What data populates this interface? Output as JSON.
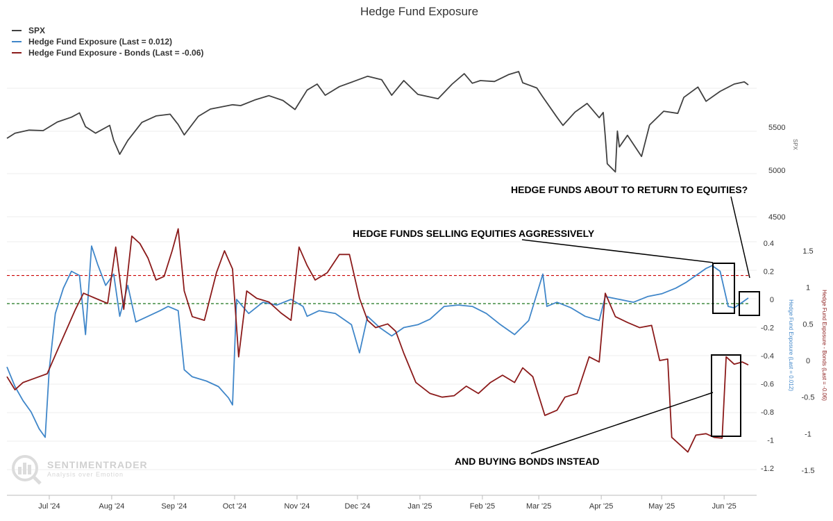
{
  "title": "Hedge Fund Exposure",
  "legend": [
    {
      "label": "SPX",
      "color": "#404040"
    },
    {
      "label": "Hedge Fund Exposure (Last = 0.012)",
      "color": "#3f86c9"
    },
    {
      "label": "Hedge Fund Exposure - Bonds (Last = -0.06)",
      "color": "#8b1a1a"
    }
  ],
  "watermark": {
    "name": "SENTIMENTRADER",
    "tagline": "Analysis over Emotion"
  },
  "annotations": {
    "return": "HEDGE FUNDS ABOUT TO RETURN TO EQUITIES?",
    "selling": "HEDGE FUNDS SELLING EQUITIES AGGRESSIVELY",
    "buying": "AND BUYING BONDS INSTEAD"
  },
  "chart_data": {
    "type": "line",
    "title": "Hedge Fund Exposure",
    "x_ticks": [
      "Jul '24",
      "Aug '24",
      "Sep '24",
      "Oct '24",
      "Nov '24",
      "Dec '24",
      "Jan '25",
      "Feb '25",
      "Mar '25",
      "Apr '25",
      "May '25",
      "Jun '25"
    ],
    "x_domain": [
      "2024-06-10",
      "2025-06-13"
    ],
    "grid": true,
    "legend_position": "top-left",
    "axes": {
      "spx": {
        "label": "SPX",
        "ticks": [
          5000,
          5500
        ],
        "extra_ticks": [
          4500
        ],
        "ylim": [
          4500,
          6600
        ]
      },
      "equity": {
        "label": "Hedge Fund Exposure (Last = 0.012)",
        "ticks": [
          -1.2,
          -1,
          -0.8,
          -0.6,
          -0.4,
          -0.2,
          0,
          0.2,
          0.4
        ],
        "ylim": [
          -1.2,
          0.4
        ],
        "color": "#3f86c9"
      },
      "bonds": {
        "label": "Hedge Fund Exposure - Bonds (Last = -0.06)",
        "ticks": [
          -1.5,
          -1,
          -0.5,
          0,
          0.5,
          1,
          1.5
        ],
        "ylim": [
          -1.5,
          1.5
        ],
        "color": "#8b1a1a"
      }
    },
    "reference_lines": [
      {
        "axis": "equity",
        "value": 0.17,
        "color": "#cc0000",
        "style": "dashed"
      },
      {
        "axis": "equity",
        "value": -0.03,
        "color": "#006400",
        "style": "dashed"
      }
    ],
    "series": [
      {
        "name": "SPX",
        "axis": "spx",
        "color": "#404040",
        "points": [
          [
            "2024-06-10",
            5370
          ],
          [
            "2024-06-14",
            5430
          ],
          [
            "2024-06-21",
            5465
          ],
          [
            "2024-06-28",
            5460
          ],
          [
            "2024-07-05",
            5560
          ],
          [
            "2024-07-12",
            5615
          ],
          [
            "2024-07-16",
            5665
          ],
          [
            "2024-07-19",
            5505
          ],
          [
            "2024-07-24",
            5430
          ],
          [
            "2024-07-31",
            5520
          ],
          [
            "2024-08-02",
            5345
          ],
          [
            "2024-08-05",
            5185
          ],
          [
            "2024-08-09",
            5345
          ],
          [
            "2024-08-16",
            5555
          ],
          [
            "2024-08-23",
            5630
          ],
          [
            "2024-08-30",
            5650
          ],
          [
            "2024-09-03",
            5530
          ],
          [
            "2024-09-06",
            5410
          ],
          [
            "2024-09-13",
            5625
          ],
          [
            "2024-09-19",
            5710
          ],
          [
            "2024-09-30",
            5760
          ],
          [
            "2024-10-04",
            5750
          ],
          [
            "2024-10-11",
            5815
          ],
          [
            "2024-10-18",
            5865
          ],
          [
            "2024-10-25",
            5810
          ],
          [
            "2024-10-31",
            5705
          ],
          [
            "2024-11-06",
            5930
          ],
          [
            "2024-11-11",
            6000
          ],
          [
            "2024-11-15",
            5870
          ],
          [
            "2024-11-22",
            5970
          ],
          [
            "2024-11-29",
            6030
          ],
          [
            "2024-12-06",
            6090
          ],
          [
            "2024-12-13",
            6050
          ],
          [
            "2024-12-18",
            5870
          ],
          [
            "2024-12-24",
            6040
          ],
          [
            "2024-12-31",
            5880
          ],
          [
            "2025-01-10",
            5830
          ],
          [
            "2025-01-17",
            6000
          ],
          [
            "2025-01-23",
            6120
          ],
          [
            "2025-01-27",
            6010
          ],
          [
            "2025-01-31",
            6040
          ],
          [
            "2025-02-07",
            6030
          ],
          [
            "2025-02-14",
            6110
          ],
          [
            "2025-02-19",
            6145
          ],
          [
            "2025-02-21",
            6015
          ],
          [
            "2025-02-28",
            5955
          ],
          [
            "2025-03-03",
            5850
          ],
          [
            "2025-03-10",
            5615
          ],
          [
            "2025-03-13",
            5520
          ],
          [
            "2025-03-19",
            5675
          ],
          [
            "2025-03-25",
            5775
          ],
          [
            "2025-03-31",
            5610
          ],
          [
            "2025-04-02",
            5670
          ],
          [
            "2025-04-03",
            5395
          ],
          [
            "2025-04-04",
            5075
          ],
          [
            "2025-04-08",
            4980
          ],
          [
            "2025-04-09",
            5455
          ],
          [
            "2025-04-10",
            5270
          ],
          [
            "2025-04-14",
            5405
          ],
          [
            "2025-04-21",
            5160
          ],
          [
            "2025-04-25",
            5525
          ],
          [
            "2025-05-02",
            5685
          ],
          [
            "2025-05-09",
            5660
          ],
          [
            "2025-05-12",
            5845
          ],
          [
            "2025-05-19",
            5965
          ],
          [
            "2025-05-23",
            5800
          ],
          [
            "2025-05-30",
            5915
          ],
          [
            "2025-06-06",
            6000
          ],
          [
            "2025-06-11",
            6025
          ],
          [
            "2025-06-13",
            5990
          ]
        ]
      },
      {
        "name": "Hedge Fund Exposure (Last = 0.012)",
        "axis": "equity",
        "color": "#3f86c9",
        "points": [
          [
            "2024-06-10",
            -0.48
          ],
          [
            "2024-06-14",
            -0.62
          ],
          [
            "2024-06-18",
            -0.72
          ],
          [
            "2024-06-22",
            -0.8
          ],
          [
            "2024-06-26",
            -0.92
          ],
          [
            "2024-06-29",
            -0.98
          ],
          [
            "2024-07-01",
            -0.5
          ],
          [
            "2024-07-04",
            -0.1
          ],
          [
            "2024-07-08",
            0.08
          ],
          [
            "2024-07-12",
            0.2
          ],
          [
            "2024-07-16",
            0.17
          ],
          [
            "2024-07-19",
            -0.25
          ],
          [
            "2024-07-22",
            0.38
          ],
          [
            "2024-07-25",
            0.25
          ],
          [
            "2024-07-29",
            0.1
          ],
          [
            "2024-08-02",
            0.18
          ],
          [
            "2024-08-05",
            -0.12
          ],
          [
            "2024-08-09",
            0.1
          ],
          [
            "2024-08-13",
            -0.16
          ],
          [
            "2024-08-19",
            -0.12
          ],
          [
            "2024-08-25",
            -0.08
          ],
          [
            "2024-08-29",
            -0.05
          ],
          [
            "2024-09-03",
            -0.08
          ],
          [
            "2024-09-06",
            -0.5
          ],
          [
            "2024-09-10",
            -0.55
          ],
          [
            "2024-09-17",
            -0.58
          ],
          [
            "2024-09-23",
            -0.62
          ],
          [
            "2024-09-28",
            -0.7
          ],
          [
            "2024-09-30",
            -0.75
          ],
          [
            "2024-10-02",
            0.0
          ],
          [
            "2024-10-08",
            -0.1
          ],
          [
            "2024-10-15",
            -0.02
          ],
          [
            "2024-10-22",
            -0.04
          ],
          [
            "2024-10-29",
            0.0
          ],
          [
            "2024-11-04",
            -0.05
          ],
          [
            "2024-11-06",
            -0.12
          ],
          [
            "2024-11-12",
            -0.08
          ],
          [
            "2024-11-20",
            -0.1
          ],
          [
            "2024-11-28",
            -0.18
          ],
          [
            "2024-12-02",
            -0.38
          ],
          [
            "2024-12-06",
            -0.12
          ],
          [
            "2024-12-12",
            -0.2
          ],
          [
            "2024-12-18",
            -0.26
          ],
          [
            "2024-12-24",
            -0.2
          ],
          [
            "2024-12-31",
            -0.18
          ],
          [
            "2025-01-06",
            -0.14
          ],
          [
            "2025-01-13",
            -0.05
          ],
          [
            "2025-01-20",
            -0.04
          ],
          [
            "2025-01-27",
            -0.05
          ],
          [
            "2025-02-03",
            -0.1
          ],
          [
            "2025-02-10",
            -0.18
          ],
          [
            "2025-02-17",
            -0.25
          ],
          [
            "2025-02-24",
            -0.15
          ],
          [
            "2025-03-03",
            0.18
          ],
          [
            "2025-03-05",
            -0.05
          ],
          [
            "2025-03-10",
            -0.02
          ],
          [
            "2025-03-17",
            -0.06
          ],
          [
            "2025-03-24",
            -0.12
          ],
          [
            "2025-03-31",
            -0.15
          ],
          [
            "2025-04-03",
            0.02
          ],
          [
            "2025-04-10",
            0.0
          ],
          [
            "2025-04-17",
            -0.02
          ],
          [
            "2025-04-24",
            0.02
          ],
          [
            "2025-05-01",
            0.04
          ],
          [
            "2025-05-08",
            0.08
          ],
          [
            "2025-05-13",
            0.12
          ],
          [
            "2025-05-19",
            0.18
          ],
          [
            "2025-05-23",
            0.22
          ],
          [
            "2025-05-26",
            0.24
          ],
          [
            "2025-05-30",
            0.2
          ],
          [
            "2025-06-03",
            -0.05
          ],
          [
            "2025-06-06",
            -0.06
          ],
          [
            "2025-06-10",
            -0.02
          ],
          [
            "2025-06-13",
            0.01
          ]
        ]
      },
      {
        "name": "Hedge Fund Exposure - Bonds (Last = -0.06)",
        "axis": "bonds",
        "color": "#8b1a1a",
        "points": [
          [
            "2024-06-10",
            -0.22
          ],
          [
            "2024-06-14",
            -0.4
          ],
          [
            "2024-06-18",
            -0.3
          ],
          [
            "2024-06-24",
            -0.24
          ],
          [
            "2024-06-30",
            -0.18
          ],
          [
            "2024-07-06",
            0.2
          ],
          [
            "2024-07-10",
            0.45
          ],
          [
            "2024-07-14",
            0.7
          ],
          [
            "2024-07-18",
            0.92
          ],
          [
            "2024-07-24",
            0.85
          ],
          [
            "2024-07-30",
            0.78
          ],
          [
            "2024-08-03",
            1.55
          ],
          [
            "2024-08-07",
            0.7
          ],
          [
            "2024-08-11",
            1.7
          ],
          [
            "2024-08-15",
            1.6
          ],
          [
            "2024-08-19",
            1.4
          ],
          [
            "2024-08-23",
            1.1
          ],
          [
            "2024-08-27",
            1.15
          ],
          [
            "2024-08-31",
            1.5
          ],
          [
            "2024-09-03",
            1.8
          ],
          [
            "2024-09-06",
            0.95
          ],
          [
            "2024-09-10",
            0.6
          ],
          [
            "2024-09-16",
            0.55
          ],
          [
            "2024-09-22",
            1.2
          ],
          [
            "2024-09-26",
            1.5
          ],
          [
            "2024-09-30",
            1.25
          ],
          [
            "2024-10-03",
            0.05
          ],
          [
            "2024-10-07",
            0.95
          ],
          [
            "2024-10-12",
            0.85
          ],
          [
            "2024-10-18",
            0.8
          ],
          [
            "2024-10-24",
            0.65
          ],
          [
            "2024-10-29",
            0.55
          ],
          [
            "2024-11-02",
            1.55
          ],
          [
            "2024-11-06",
            1.3
          ],
          [
            "2024-11-10",
            1.1
          ],
          [
            "2024-11-16",
            1.2
          ],
          [
            "2024-11-22",
            1.45
          ],
          [
            "2024-11-27",
            1.45
          ],
          [
            "2024-12-02",
            0.85
          ],
          [
            "2024-12-06",
            0.55
          ],
          [
            "2024-12-10",
            0.45
          ],
          [
            "2024-12-16",
            0.5
          ],
          [
            "2024-12-20",
            0.4
          ],
          [
            "2024-12-24",
            0.1
          ],
          [
            "2024-12-30",
            -0.3
          ],
          [
            "2025-01-06",
            -0.45
          ],
          [
            "2025-01-12",
            -0.5
          ],
          [
            "2025-01-18",
            -0.48
          ],
          [
            "2025-01-24",
            -0.35
          ],
          [
            "2025-01-30",
            -0.45
          ],
          [
            "2025-02-05",
            -0.3
          ],
          [
            "2025-02-11",
            -0.2
          ],
          [
            "2025-02-17",
            -0.3
          ],
          [
            "2025-02-21",
            -0.1
          ],
          [
            "2025-02-26",
            -0.22
          ],
          [
            "2025-03-04",
            -0.75
          ],
          [
            "2025-03-10",
            -0.68
          ],
          [
            "2025-03-14",
            -0.5
          ],
          [
            "2025-03-20",
            -0.45
          ],
          [
            "2025-03-26",
            0.05
          ],
          [
            "2025-03-31",
            -0.02
          ],
          [
            "2025-04-03",
            0.92
          ],
          [
            "2025-04-08",
            0.6
          ],
          [
            "2025-04-14",
            0.52
          ],
          [
            "2025-04-20",
            0.45
          ],
          [
            "2025-04-26",
            0.48
          ],
          [
            "2025-04-30",
            0.0
          ],
          [
            "2025-05-04",
            0.02
          ],
          [
            "2025-05-06",
            -1.05
          ],
          [
            "2025-05-10",
            -1.15
          ],
          [
            "2025-05-14",
            -1.25
          ],
          [
            "2025-05-18",
            -1.02
          ],
          [
            "2025-05-23",
            -1.0
          ],
          [
            "2025-05-27",
            -1.05
          ],
          [
            "2025-05-31",
            -1.06
          ],
          [
            "2025-06-02",
            0.05
          ],
          [
            "2025-06-06",
            -0.05
          ],
          [
            "2025-06-10",
            -0.02
          ],
          [
            "2025-06-13",
            -0.06
          ]
        ]
      }
    ]
  }
}
